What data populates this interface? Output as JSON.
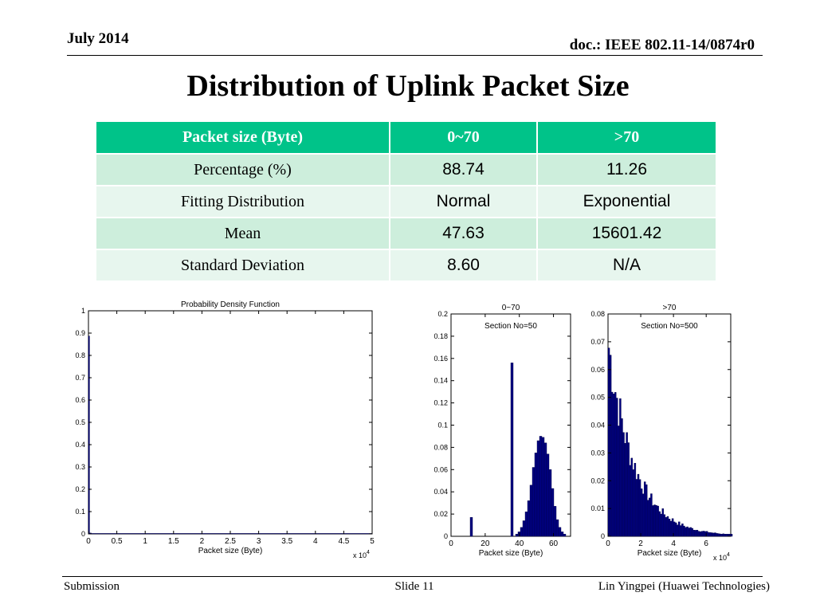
{
  "header": {
    "date": "July 2014",
    "doc": "doc.: IEEE 802.11-14/0874r0"
  },
  "title": "Distribution of Uplink Packet Size",
  "table": {
    "headers": [
      "Packet size (Byte)",
      "0~70",
      ">70"
    ],
    "rows": [
      [
        "Percentage (%)",
        "88.74",
        "11.26"
      ],
      [
        "Fitting Distribution",
        "Normal",
        "Exponential"
      ],
      [
        "Mean",
        "47.63",
        "15601.42"
      ],
      [
        "Standard Deviation",
        "8.60",
        "N/A"
      ]
    ]
  },
  "chart_data": [
    {
      "type": "bar",
      "title": "Probability Density Function",
      "xlabel": "Packet size (Byte)",
      "x_multiplier": "x 10^4",
      "xlim": [
        0,
        5
      ],
      "ylim": [
        0,
        1
      ],
      "xticks": [
        "0",
        "0.5",
        "1",
        "1.5",
        "2",
        "2.5",
        "3",
        "3.5",
        "4",
        "4.5",
        "5"
      ],
      "yticks": [
        "0",
        "0.1",
        "0.2",
        "0.3",
        "0.4",
        "0.5",
        "0.6",
        "0.7",
        "0.8",
        "0.9",
        "1"
      ],
      "bar_color": "#000080",
      "bars": [
        {
          "x": 0.0,
          "width": 0.02,
          "y": 0.887
        },
        {
          "x": 0.02,
          "width": 0.03,
          "y": 0.004
        },
        {
          "x": 0.05,
          "width": 4.95,
          "y": 0.002
        }
      ]
    },
    {
      "type": "bar",
      "title": "0~70",
      "annotation": "Section No=50",
      "xlabel": "Packet size (Byte)",
      "xlim": [
        0,
        70
      ],
      "ylim": [
        0,
        0.2
      ],
      "xticks": [
        "0",
        "20",
        "40",
        "60"
      ],
      "yticks": [
        "0",
        "0.02",
        "0.04",
        "0.06",
        "0.08",
        "0.1",
        "0.12",
        "0.14",
        "0.16",
        "0.18",
        "0.2"
      ],
      "bar_color": "#000080",
      "bin_width": 1.4,
      "bars": [
        {
          "x": 11.2,
          "y": 0.017
        },
        {
          "x": 35.0,
          "y": 0.156
        },
        {
          "x": 37.8,
          "y": 0.002
        },
        {
          "x": 39.2,
          "y": 0.004
        },
        {
          "x": 40.6,
          "y": 0.008
        },
        {
          "x": 42.0,
          "y": 0.014
        },
        {
          "x": 43.4,
          "y": 0.022
        },
        {
          "x": 44.8,
          "y": 0.032
        },
        {
          "x": 46.2,
          "y": 0.046
        },
        {
          "x": 47.6,
          "y": 0.062
        },
        {
          "x": 49.0,
          "y": 0.075
        },
        {
          "x": 50.4,
          "y": 0.086
        },
        {
          "x": 51.8,
          "y": 0.09
        },
        {
          "x": 53.2,
          "y": 0.089
        },
        {
          "x": 54.6,
          "y": 0.084
        },
        {
          "x": 56.0,
          "y": 0.074
        },
        {
          "x": 57.4,
          "y": 0.06
        },
        {
          "x": 58.8,
          "y": 0.043
        },
        {
          "x": 60.2,
          "y": 0.027
        },
        {
          "x": 61.6,
          "y": 0.015
        },
        {
          "x": 63.0,
          "y": 0.008
        },
        {
          "x": 64.4,
          "y": 0.004
        },
        {
          "x": 65.8,
          "y": 0.002
        }
      ]
    },
    {
      "type": "bar",
      "title": ">70",
      "annotation": "Section No=500",
      "xlabel": "Packet size (Byte)",
      "x_multiplier": "x 10^4",
      "xlim": [
        0,
        7.5
      ],
      "ylim": [
        0,
        0.08
      ],
      "xticks": [
        "0",
        "2",
        "4",
        "6"
      ],
      "yticks": [
        "0",
        "0.01",
        "0.02",
        "0.03",
        "0.04",
        "0.05",
        "0.06",
        "0.07",
        "0.08"
      ],
      "bar_color": "#000080",
      "decay": {
        "peak": 0.068,
        "rate": 0.63,
        "bin_width": 0.1
      }
    }
  ],
  "footer": {
    "left": "Submission",
    "center": "Slide 11",
    "right": "Lin Yingpei (Huawei Technologies)"
  }
}
